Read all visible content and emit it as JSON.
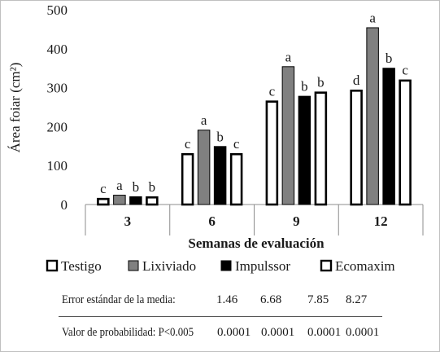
{
  "chart_data": {
    "type": "bar",
    "ylabel": "Área foiar (cm²)",
    "xlabel": "Semanas de evaluación",
    "ylim": [
      0,
      500
    ],
    "yticks": [
      0,
      100,
      200,
      300,
      400,
      500
    ],
    "grid": false,
    "legend_position": "bottom",
    "categories": [
      "3",
      "6",
      "9",
      "12"
    ],
    "series": [
      {
        "name": "Testigo",
        "fill": "#ffffff",
        "values": [
          17,
          132,
          267,
          295
        ],
        "letters": [
          "c",
          "c",
          "c",
          "d"
        ]
      },
      {
        "name": "Lixiviado",
        "fill": "#808080",
        "values": [
          25,
          192,
          355,
          455
        ],
        "letters": [
          "a",
          "a",
          "a",
          "a"
        ]
      },
      {
        "name": "Impulssor",
        "fill": "#000000",
        "values": [
          21,
          150,
          279,
          351
        ],
        "letters": [
          "b",
          "b",
          "b",
          "b"
        ]
      },
      {
        "name": "Ecomaxim",
        "fill": "#ffffff",
        "values": [
          21,
          132,
          290,
          321
        ],
        "letters": [
          "b",
          "c",
          "b",
          "c"
        ]
      }
    ]
  },
  "stats": {
    "error_label": "Error estándar de la media:",
    "error_values": [
      "1.46",
      "6.68",
      "7.85",
      "8.27"
    ],
    "prob_label": "Valor de probabilidad: P<0.005",
    "prob_values": [
      "0.0001",
      "0.0001",
      "0.0001",
      "0.0001"
    ]
  },
  "colors": {
    "axis": "#8c8c8c",
    "text": "#1a1a1a",
    "bar_stroke": "#000000"
  }
}
